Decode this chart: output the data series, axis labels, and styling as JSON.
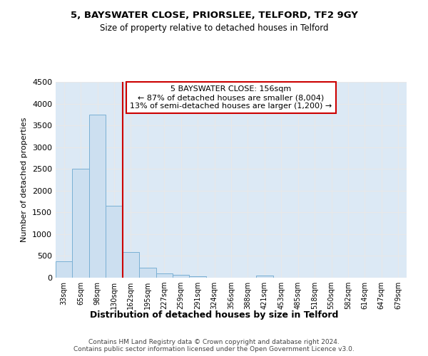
{
  "title1": "5, BAYSWATER CLOSE, PRIORSLEE, TELFORD, TF2 9GY",
  "title2": "Size of property relative to detached houses in Telford",
  "xlabel": "Distribution of detached houses by size in Telford",
  "ylabel": "Number of detached properties",
  "categories": [
    "33sqm",
    "65sqm",
    "98sqm",
    "130sqm",
    "162sqm",
    "195sqm",
    "227sqm",
    "259sqm",
    "291sqm",
    "324sqm",
    "356sqm",
    "388sqm",
    "421sqm",
    "453sqm",
    "485sqm",
    "518sqm",
    "550sqm",
    "582sqm",
    "614sqm",
    "647sqm",
    "679sqm"
  ],
  "values": [
    375,
    2500,
    3750,
    1650,
    590,
    225,
    100,
    60,
    40,
    0,
    0,
    0,
    55,
    0,
    0,
    0,
    0,
    0,
    0,
    0,
    0
  ],
  "bar_color": "#ccdff0",
  "bar_edge_color": "#7ab0d4",
  "vline_color": "#cc0000",
  "vline_pos": 3.5,
  "annotation_line1": "5 BAYSWATER CLOSE: 156sqm",
  "annotation_line2": "← 87% of detached houses are smaller (8,004)",
  "annotation_line3": "13% of semi-detached houses are larger (1,200) →",
  "ann_box_color": "#cc0000",
  "ylim": [
    0,
    4500
  ],
  "yticks": [
    0,
    500,
    1000,
    1500,
    2000,
    2500,
    3000,
    3500,
    4000,
    4500
  ],
  "plot_bg_color": "#dce9f5",
  "fig_bg_color": "#ffffff",
  "grid_color": "#e8e8e8",
  "footer": "Contains HM Land Registry data © Crown copyright and database right 2024.\nContains public sector information licensed under the Open Government Licence v3.0."
}
